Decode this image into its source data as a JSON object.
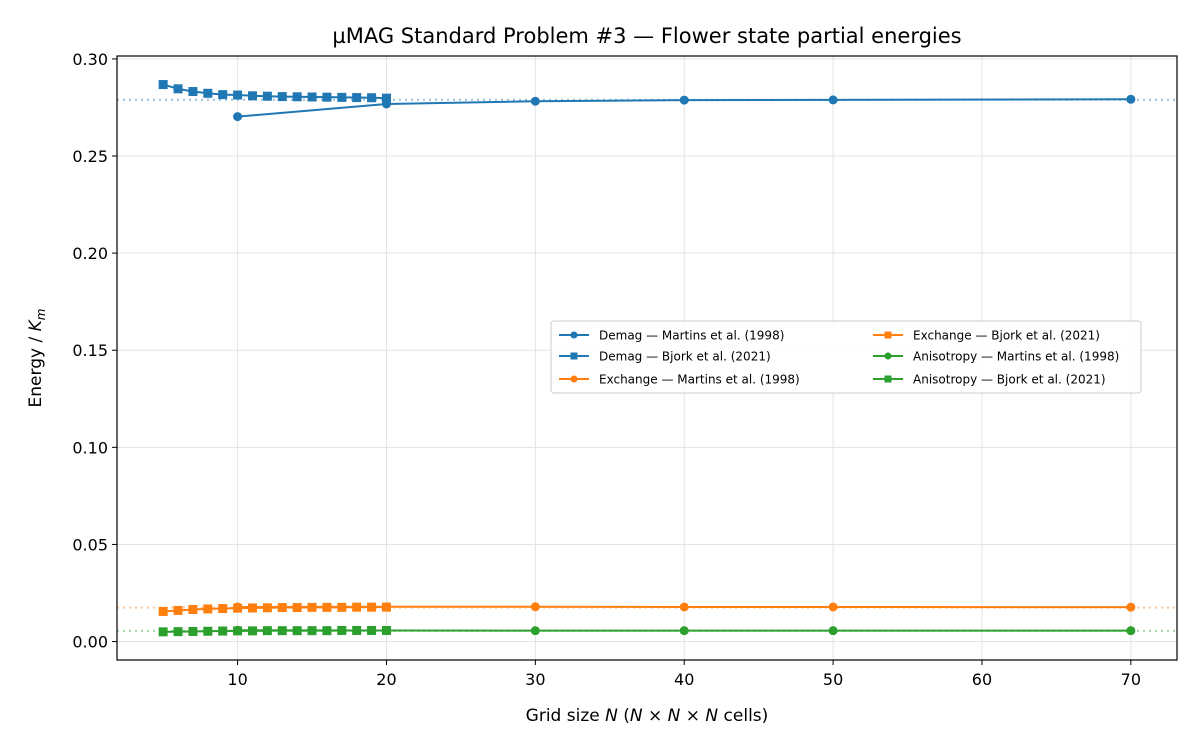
{
  "chart_data": {
    "type": "line",
    "title": "µMAG Standard Problem #3 — Flower state partial energies",
    "xlabel": {
      "pre": "Grid size ",
      "var": "N",
      "mid": " (",
      "expr": "N × N × N",
      "post": " cells)"
    },
    "ylabel": {
      "pre": "Energy / ",
      "var": "K",
      "sub": "m"
    },
    "xlim": [
      1.9,
      73.1
    ],
    "ylim": [
      -0.0095,
      0.3015
    ],
    "xticks": [
      10,
      20,
      30,
      40,
      50,
      60,
      70
    ],
    "yticks": [
      0.0,
      0.05,
      0.1,
      0.15,
      0.2,
      0.25,
      0.3
    ],
    "ytick_labels": [
      "0.00",
      "0.05",
      "0.10",
      "0.15",
      "0.20",
      "0.25",
      "0.30"
    ],
    "grid": true,
    "legend_position": "center-right",
    "legend_columns": 2,
    "reference_lines": [
      {
        "y": 0.279,
        "color": "#1f77b4"
      },
      {
        "y": 0.0175,
        "color": "#ff7f0e"
      },
      {
        "y": 0.0055,
        "color": "#2ca02c"
      }
    ],
    "series": [
      {
        "name": "Demag — Martins et al. (1998)",
        "color": "#1f77b4",
        "marker": "circle",
        "x": [
          10,
          20,
          30,
          40,
          50,
          70
        ],
        "y": [
          0.2703,
          0.2768,
          0.2782,
          0.2788,
          0.2789,
          0.2792
        ]
      },
      {
        "name": "Demag — Bjork et al. (2021)",
        "color": "#1f77b4",
        "marker": "square",
        "x": [
          5,
          6,
          7,
          8,
          9,
          10,
          11,
          12,
          13,
          14,
          15,
          16,
          17,
          18,
          19,
          20
        ],
        "y": [
          0.2868,
          0.2846,
          0.2832,
          0.2823,
          0.2816,
          0.2814,
          0.281,
          0.2808,
          0.2806,
          0.2805,
          0.2804,
          0.2803,
          0.2802,
          0.2801,
          0.28,
          0.2798
        ]
      },
      {
        "name": "Exchange — Martins et al. (1998)",
        "color": "#ff7f0e",
        "marker": "circle",
        "x": [
          10,
          20,
          30,
          40,
          50,
          70
        ],
        "y": [
          0.0178,
          0.0179,
          0.0179,
          0.0178,
          0.0178,
          0.0177
        ]
      },
      {
        "name": "Exchange — Bjork et al. (2021)",
        "color": "#ff7f0e",
        "marker": "square",
        "x": [
          5,
          6,
          7,
          8,
          9,
          10,
          11,
          12,
          13,
          14,
          15,
          16,
          17,
          18,
          19,
          20
        ],
        "y": [
          0.0155,
          0.016,
          0.0165,
          0.0168,
          0.017,
          0.0172,
          0.0173,
          0.0174,
          0.0175,
          0.0175,
          0.0176,
          0.0176,
          0.0176,
          0.0177,
          0.0177,
          0.0177
        ]
      },
      {
        "name": "Anisotropy — Martins et al. (1998)",
        "color": "#2ca02c",
        "marker": "circle",
        "x": [
          10,
          20,
          30,
          40,
          50,
          70
        ],
        "y": [
          0.0058,
          0.0057,
          0.0056,
          0.0056,
          0.0056,
          0.0056
        ]
      },
      {
        "name": "Anisotropy — Bjork et al. (2021)",
        "color": "#2ca02c",
        "marker": "square",
        "x": [
          5,
          6,
          7,
          8,
          9,
          10,
          11,
          12,
          13,
          14,
          15,
          16,
          17,
          18,
          19,
          20
        ],
        "y": [
          0.005,
          0.0051,
          0.0052,
          0.0053,
          0.0054,
          0.0055,
          0.0055,
          0.0056,
          0.0056,
          0.0056,
          0.0056,
          0.0056,
          0.0057,
          0.0057,
          0.0057,
          0.0057
        ]
      }
    ]
  }
}
